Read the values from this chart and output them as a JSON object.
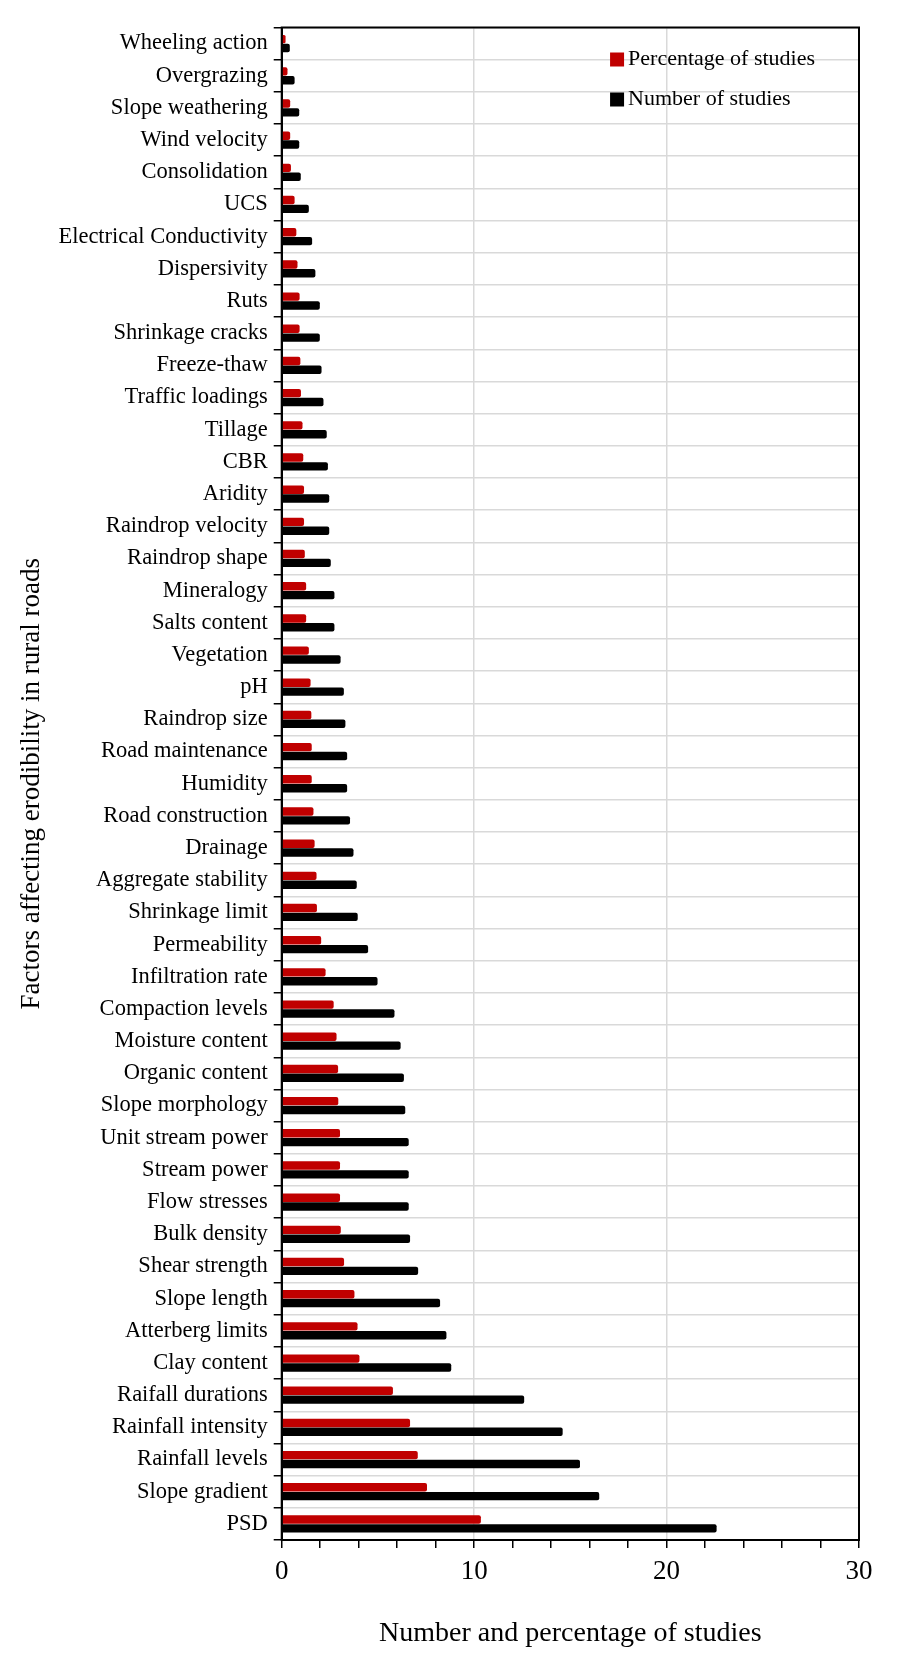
{
  "chart_data": {
    "type": "bar",
    "orientation": "horizontal",
    "xlabel": "Number and percentage of studies",
    "ylabel": "Factors affecting erodibility in rural roads",
    "categories": [
      "Wheeling action",
      "Overgrazing",
      "Slope weathering",
      "Wind velocity",
      "Consolidation",
      "UCS",
      "Electrical Conductivity",
      "Dispersivity",
      "Ruts",
      "Shrinkage cracks",
      "Freeze-thaw",
      "Traffic loadings",
      "Tillage",
      "CBR",
      "Aridity",
      "Raindrop velocity",
      "Raindrop shape",
      "Mineralogy",
      "Salts content",
      "Vegetation",
      "pH",
      "Raindrop size",
      "Road maintenance",
      "Humidity",
      "Road construction",
      "Drainage",
      "Aggregate stability",
      "Shrinkage limit",
      "Permeability",
      "Infiltration rate",
      "Compaction levels",
      "Moisture content",
      "Organic content",
      "Slope morphology",
      "Unit stream power",
      "Stream power",
      "Flow stresses",
      "Bulk density",
      "Shear strength",
      "Slope length",
      "Atterberg limits",
      "Clay content",
      "Raifall durations",
      "Rainfall intensity",
      "Rainfall levels",
      "Slope gradient",
      "PSD"
    ],
    "series": [
      {
        "name": "Percentage of studies",
        "color": "#c00000",
        "values": [
          0.2,
          0.3,
          0.44,
          0.44,
          0.48,
          0.67,
          0.76,
          0.82,
          0.93,
          0.93,
          0.97,
          1.0,
          1.08,
          1.12,
          1.16,
          1.16,
          1.2,
          1.27,
          1.27,
          1.41,
          1.5,
          1.54,
          1.56,
          1.56,
          1.65,
          1.71,
          1.81,
          1.83,
          2.05,
          2.28,
          2.7,
          2.85,
          2.93,
          2.94,
          3.03,
          3.03,
          3.03,
          3.07,
          3.24,
          3.78,
          3.94,
          4.04,
          5.78,
          6.67,
          7.07,
          7.55,
          10.35
        ]
      },
      {
        "name": "Number of studies",
        "color": "#000000",
        "values": [
          0.42,
          0.67,
          0.91,
          0.91,
          0.99,
          1.41,
          1.58,
          1.75,
          1.98,
          1.98,
          2.07,
          2.17,
          2.34,
          2.4,
          2.47,
          2.47,
          2.55,
          2.74,
          2.74,
          3.06,
          3.23,
          3.31,
          3.4,
          3.4,
          3.55,
          3.73,
          3.9,
          3.95,
          4.49,
          4.98,
          5.86,
          6.18,
          6.35,
          6.42,
          6.6,
          6.6,
          6.6,
          6.67,
          7.09,
          8.23,
          8.56,
          8.81,
          12.6,
          14.6,
          15.5,
          16.5,
          22.6
        ]
      }
    ],
    "xlim": [
      0,
      30
    ],
    "xticks": [
      0,
      {
        "value": 2,
        "label": null
      },
      {
        "value": 4,
        "label": null
      },
      {
        "value": 6,
        "label": null
      },
      {
        "value": 8,
        "label": null
      },
      10,
      {
        "value": 12,
        "label": null
      },
      {
        "value": 14,
        "label": null
      },
      {
        "value": 16,
        "label": null
      },
      {
        "value": 18,
        "label": null
      },
      20,
      {
        "value": 22,
        "label": null
      },
      {
        "value": 24,
        "label": null
      },
      {
        "value": 26,
        "label": null
      },
      {
        "value": 28,
        "label": null
      },
      30
    ],
    "grid": true,
    "legend": "top right"
  }
}
